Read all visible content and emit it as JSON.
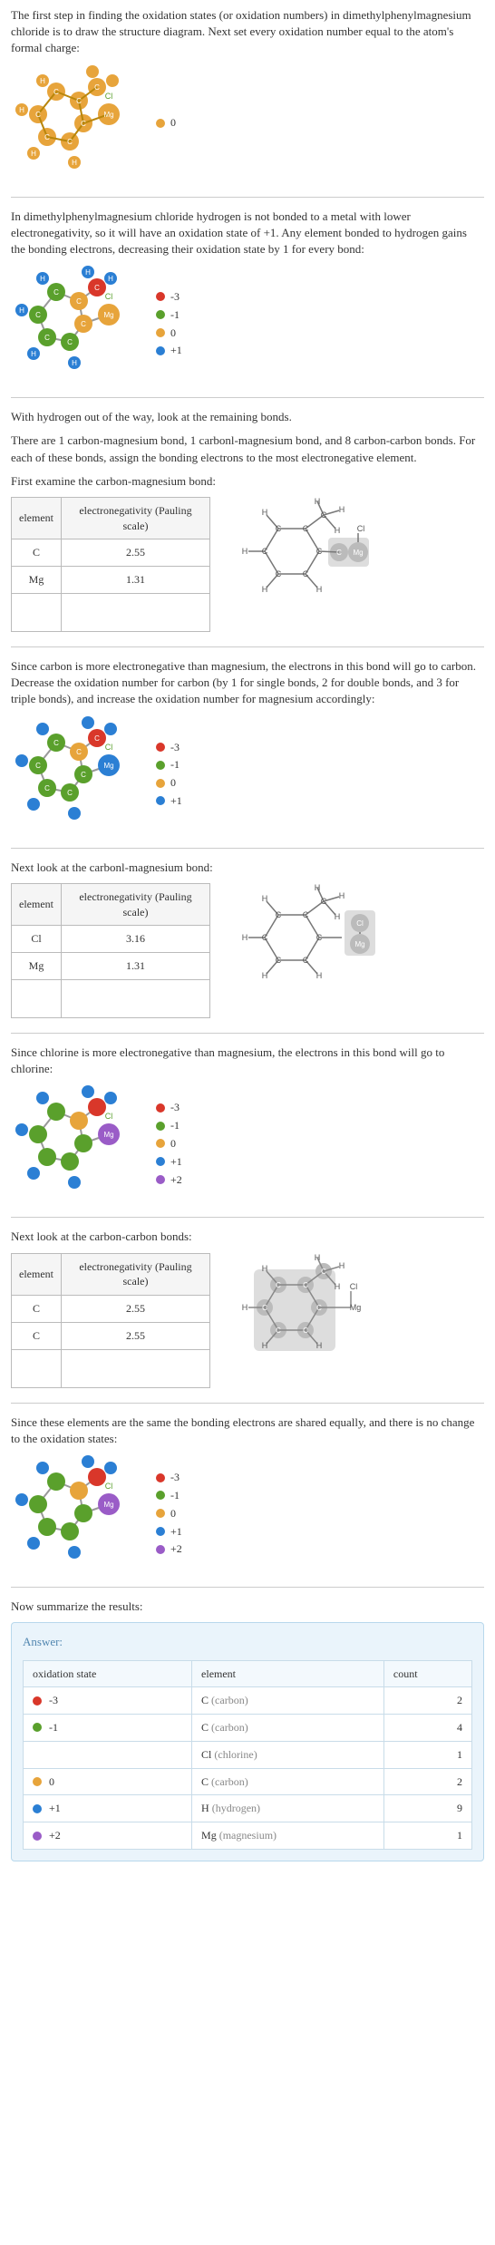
{
  "colors": {
    "red": "#d9372a",
    "green": "#5aa02c",
    "orange": "#e7a43b",
    "blue": "#2b7fd4",
    "purple": "#9a5cc7",
    "grey": "#888888",
    "tableBorder": "#bbbbbb",
    "answerBg": "#eaf4fb",
    "answerBorder": "#b8d8ec"
  },
  "intro": "The first step in finding the oxidation states (or oxidation numbers) in dimethylphenylmagnesium chloride is to draw the structure diagram. Next set every oxidation number equal to the atom's formal charge:",
  "legend1": [
    {
      "color": "#e7a43b",
      "label": "0"
    }
  ],
  "p2": "In dimethylphenylmagnesium chloride hydrogen is not bonded to a metal with lower electronegativity, so it will have an oxidation state of +1. Any element bonded to hydrogen gains the bonding electrons, decreasing their oxidation state by 1 for every bond:",
  "legend2": [
    {
      "color": "#d9372a",
      "label": "-3"
    },
    {
      "color": "#5aa02c",
      "label": "-1"
    },
    {
      "color": "#e7a43b",
      "label": "0"
    },
    {
      "color": "#2b7fd4",
      "label": "+1"
    }
  ],
  "p3a": "With hydrogen out of the way, look at the remaining bonds.",
  "p3b": "There are 1 carbon-magnesium bond, 1 carbonl-magnesium bond, and 8 carbon-carbon bonds.  For each of these bonds, assign the bonding electrons to the most electronegative element.",
  "p4": "First examine the carbon-magnesium bond:",
  "tableHeaders": {
    "element": "element",
    "en": "electronegativity (Pauling scale)"
  },
  "tableCMg": [
    {
      "el": "C",
      "en": "2.55"
    },
    {
      "el": "Mg",
      "en": "1.31"
    }
  ],
  "p5": "Since carbon is more electronegative than magnesium, the electrons in this bond will go to carbon. Decrease the oxidation number for carbon (by 1 for single bonds, 2 for double bonds, and 3 for triple bonds), and increase the oxidation number for magnesium accordingly:",
  "legend3": [
    {
      "color": "#d9372a",
      "label": "-3"
    },
    {
      "color": "#5aa02c",
      "label": "-1"
    },
    {
      "color": "#e7a43b",
      "label": "0"
    },
    {
      "color": "#2b7fd4",
      "label": "+1"
    }
  ],
  "p6": "Next look at the carbonl-magnesium bond:",
  "tableClMg": [
    {
      "el": "Cl",
      "en": "3.16"
    },
    {
      "el": "Mg",
      "en": "1.31"
    }
  ],
  "p7": "Since chlorine is more electronegative than magnesium, the electrons in this bond will go to chlorine:",
  "legend4": [
    {
      "color": "#d9372a",
      "label": "-3"
    },
    {
      "color": "#5aa02c",
      "label": "-1"
    },
    {
      "color": "#e7a43b",
      "label": "0"
    },
    {
      "color": "#2b7fd4",
      "label": "+1"
    },
    {
      "color": "#9a5cc7",
      "label": "+2"
    }
  ],
  "p8": "Next look at the carbon-carbon bonds:",
  "tableCC": [
    {
      "el": "C",
      "en": "2.55"
    },
    {
      "el": "C",
      "en": "2.55"
    }
  ],
  "p9": "Since these elements are the same the bonding electrons are shared equally, and there is no change to the oxidation states:",
  "legend5": [
    {
      "color": "#d9372a",
      "label": "-3"
    },
    {
      "color": "#5aa02c",
      "label": "-1"
    },
    {
      "color": "#e7a43b",
      "label": "0"
    },
    {
      "color": "#2b7fd4",
      "label": "+1"
    },
    {
      "color": "#9a5cc7",
      "label": "+2"
    }
  ],
  "p10": "Now summarize the results:",
  "answerLabel": "Answer:",
  "resultHeaders": {
    "ox": "oxidation state",
    "el": "element",
    "count": "count"
  },
  "results": [
    {
      "color": "#d9372a",
      "ox": "-3",
      "elSym": "C",
      "elName": "(carbon)",
      "count": "2"
    },
    {
      "color": "#5aa02c",
      "ox": "-1",
      "elSym": "C",
      "elName": "(carbon)",
      "count": "4"
    },
    {
      "color": "",
      "ox": "",
      "elSym": "Cl",
      "elName": "(chlorine)",
      "count": "1"
    },
    {
      "color": "#e7a43b",
      "ox": "0",
      "elSym": "C",
      "elName": "(carbon)",
      "count": "2"
    },
    {
      "color": "#2b7fd4",
      "ox": "+1",
      "elSym": "H",
      "elName": "(hydrogen)",
      "count": "9"
    },
    {
      "color": "#9a5cc7",
      "ox": "+2",
      "elSym": "Mg",
      "elName": "(magnesium)",
      "count": "1"
    }
  ],
  "structLabels": {
    "H": "H",
    "C": "C",
    "Cl": "Cl",
    "Mg": "Mg"
  }
}
